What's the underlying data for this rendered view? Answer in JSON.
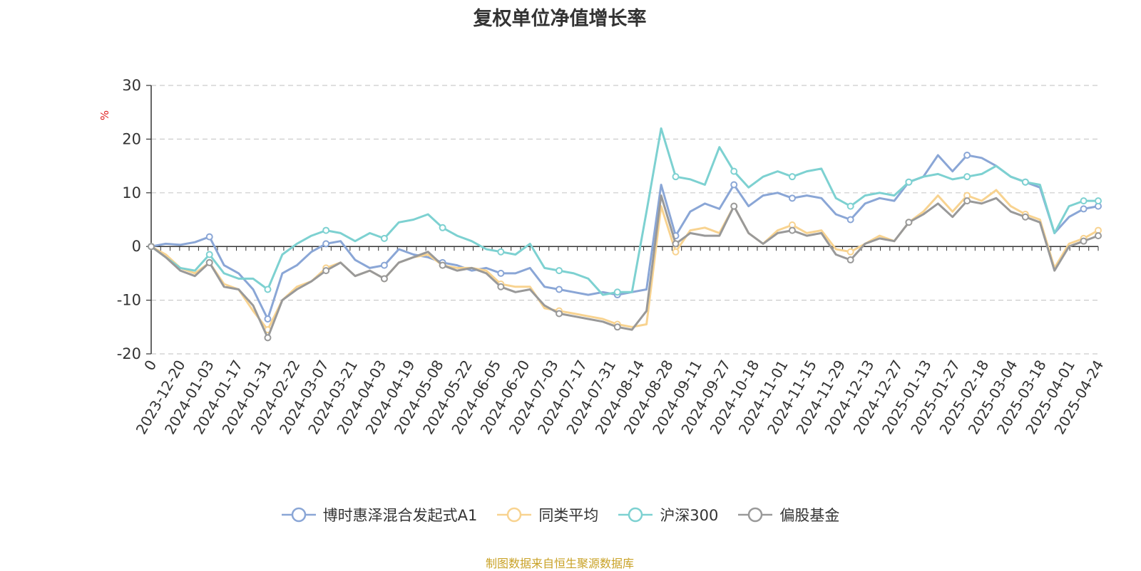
{
  "chart_data": {
    "type": "line",
    "title": "复权单位净值增长率",
    "ylabel": "%",
    "ylim": [
      -20,
      30
    ],
    "yticks": [
      -20,
      -10,
      0,
      10,
      20,
      30
    ],
    "x_tick_labels": [
      "0",
      "2023-12-20",
      "2024-01-03",
      "2024-01-17",
      "2024-01-31",
      "2024-02-22",
      "2024-03-07",
      "2024-03-21",
      "2024-04-03",
      "2024-04-19",
      "2024-05-08",
      "2024-05-22",
      "2024-06-05",
      "2024-06-20",
      "2024-07-03",
      "2024-07-17",
      "2024-07-31",
      "2024-08-14",
      "2024-08-28",
      "2024-09-11",
      "2024-09-27",
      "2024-10-18",
      "2024-11-01",
      "2024-11-15",
      "2024-11-29",
      "2024-12-13",
      "2024-12-27",
      "2025-01-13",
      "2025-01-27",
      "2025-02-18",
      "2025-03-04",
      "2025-03-18",
      "2025-04-01",
      "2025-04-24"
    ],
    "grid": true,
    "legend_position": "bottom",
    "series": [
      {
        "name": "博时惠泽混合发起式A1",
        "color": "#8aa6d6",
        "values": [
          0,
          0.5,
          0.3,
          0.8,
          1.8,
          -3.5,
          -5.0,
          -8.0,
          -13.5,
          -5.0,
          -3.5,
          -1.0,
          0.5,
          1.0,
          -2.5,
          -4.0,
          -3.5,
          -0.5,
          -1.5,
          -2.0,
          -3.0,
          -3.5,
          -4.5,
          -4.0,
          -5.0,
          -5.0,
          -4.0,
          -7.5,
          -8.0,
          -8.5,
          -9.0,
          -8.5,
          -9.0,
          -8.5,
          -8.0,
          11.5,
          2.0,
          6.5,
          8.0,
          7.0,
          11.5,
          7.5,
          9.5,
          10.0,
          9.0,
          9.5,
          9.0,
          6.0,
          5.0,
          8.0,
          9.0,
          8.5,
          12.0,
          13.0,
          17.0,
          14.0,
          17.0,
          16.5,
          15.0,
          13.0,
          12.0,
          11.0,
          2.5,
          5.5,
          7.0,
          7.5
        ]
      },
      {
        "name": "同类平均",
        "color": "#f8d390",
        "values": [
          0,
          -1.5,
          -4.0,
          -5.0,
          -3.0,
          -7.0,
          -8.0,
          -12.0,
          -15.5,
          -10.0,
          -7.5,
          -6.5,
          -4.0,
          -3.0,
          -5.5,
          -4.5,
          -6.0,
          -3.0,
          -2.0,
          -1.5,
          -3.5,
          -4.0,
          -4.0,
          -4.5,
          -7.0,
          -7.5,
          -7.5,
          -11.5,
          -12.0,
          -12.5,
          -13.0,
          -13.5,
          -14.5,
          -15.0,
          -14.5,
          7.5,
          -1.0,
          3.0,
          3.5,
          2.5,
          7.5,
          2.5,
          0.5,
          3.0,
          4.0,
          2.5,
          3.0,
          -0.5,
          -1.0,
          0.5,
          2.0,
          1.0,
          4.5,
          6.5,
          9.5,
          6.5,
          9.5,
          8.5,
          10.5,
          7.5,
          6.0,
          5.0,
          -4.0,
          0.5,
          1.5,
          3.0
        ]
      },
      {
        "name": "沪深300",
        "color": "#7dd1d1",
        "values": [
          0,
          -2.0,
          -4.0,
          -4.5,
          -1.5,
          -5.0,
          -6.0,
          -6.0,
          -8.0,
          -1.5,
          0.5,
          2.0,
          3.0,
          2.5,
          1.0,
          2.5,
          1.5,
          4.5,
          5.0,
          6.0,
          3.5,
          2.0,
          1.0,
          -0.5,
          -1.0,
          -1.5,
          0.5,
          -4.0,
          -4.5,
          -5.0,
          -6.0,
          -9.0,
          -8.5,
          -8.5,
          6.5,
          22.0,
          13.0,
          12.5,
          11.5,
          18.5,
          14.0,
          11.0,
          13.0,
          14.0,
          13.0,
          14.0,
          14.5,
          9.0,
          7.5,
          9.5,
          10.0,
          9.5,
          12.0,
          13.0,
          13.5,
          12.5,
          13.0,
          13.5,
          15.0,
          13.0,
          12.0,
          11.5,
          2.5,
          7.5,
          8.5,
          8.5
        ]
      },
      {
        "name": "偏股基金",
        "color": "#999999",
        "values": [
          0,
          -2.0,
          -4.5,
          -5.5,
          -3.0,
          -7.5,
          -8.0,
          -11.0,
          -17.0,
          -10.0,
          -8.0,
          -6.5,
          -4.5,
          -3.0,
          -5.5,
          -4.5,
          -6.0,
          -3.0,
          -2.0,
          -1.0,
          -3.5,
          -4.5,
          -4.0,
          -5.0,
          -7.5,
          -8.5,
          -8.0,
          -11.0,
          -12.5,
          -13.0,
          -13.5,
          -14.0,
          -15.0,
          -15.5,
          -12.0,
          9.5,
          0.5,
          2.5,
          2.0,
          2.0,
          7.5,
          2.5,
          0.5,
          2.5,
          3.0,
          2.0,
          2.5,
          -1.5,
          -2.5,
          0.5,
          1.5,
          1.0,
          4.5,
          6.0,
          8.0,
          5.5,
          8.5,
          8.0,
          9.0,
          6.5,
          5.5,
          4.5,
          -4.5,
          0.0,
          1.0,
          2.0
        ]
      }
    ]
  },
  "source_note": {
    "text": "制图数据来自恒生聚源数据库",
    "color": "#c9a227"
  }
}
